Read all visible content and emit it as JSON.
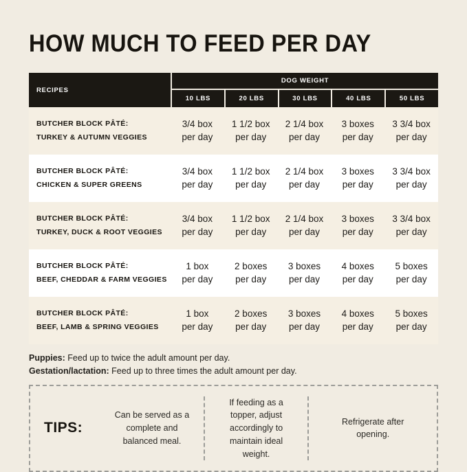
{
  "colors": {
    "page_background": "#f1ece2",
    "table_header_black": "#1b1813",
    "row_beige": "#f5efe3",
    "row_white": "#ffffff"
  },
  "chart_data": {
    "type": "table",
    "title": "HOW MUCH TO FEED PER DAY",
    "recipes_header": "RECIPES",
    "column_group_header": "DOG WEIGHT",
    "weight_columns": [
      "10 LBS",
      "20 LBS",
      "30 LBS",
      "40 LBS",
      "50 LBS"
    ],
    "per_day_label": "per day",
    "rows": [
      {
        "recipe_line1": "BUTCHER BLOCK PÂTÉ:",
        "recipe_line2": "TURKEY & AUTUMN VEGGIES",
        "values": [
          "3/4 box",
          "1 1/2 box",
          "2 1/4 box",
          "3 boxes",
          "3 3/4 box"
        ]
      },
      {
        "recipe_line1": "BUTCHER BLOCK PÂTÉ:",
        "recipe_line2": "CHICKEN & SUPER GREENS",
        "values": [
          "3/4 box",
          "1 1/2 box",
          "2 1/4 box",
          "3 boxes",
          "3 3/4 box"
        ]
      },
      {
        "recipe_line1": "BUTCHER BLOCK PÂTÉ:",
        "recipe_line2": "TURKEY, DUCK & ROOT VEGGIES",
        "values": [
          "3/4 box",
          "1 1/2 box",
          "2 1/4 box",
          "3 boxes",
          "3 3/4 box"
        ]
      },
      {
        "recipe_line1": "BUTCHER BLOCK PÂTÉ:",
        "recipe_line2": "BEEF, CHEDDAR & FARM VEGGIES",
        "values": [
          "1 box",
          "2 boxes",
          "3 boxes",
          "4 boxes",
          "5 boxes"
        ]
      },
      {
        "recipe_line1": "BUTCHER BLOCK PÂTÉ:",
        "recipe_line2": "BEEF, LAMB & SPRING VEGGIES",
        "values": [
          "1 box",
          "2 boxes",
          "3 boxes",
          "4 boxes",
          "5 boxes"
        ]
      }
    ]
  },
  "footnotes": [
    {
      "label": "Puppies:",
      "text": "Feed up to twice the adult amount per day."
    },
    {
      "label": "Gestation/lactation:",
      "text": "Feed up to three times the adult amount per day."
    }
  ],
  "tips": {
    "label": "TIPS:",
    "items": [
      "Can be served as a complete and balanced meal.",
      "If feeding as a topper, adjust accordingly to maintain ideal weight.",
      "Refrigerate after opening."
    ]
  }
}
